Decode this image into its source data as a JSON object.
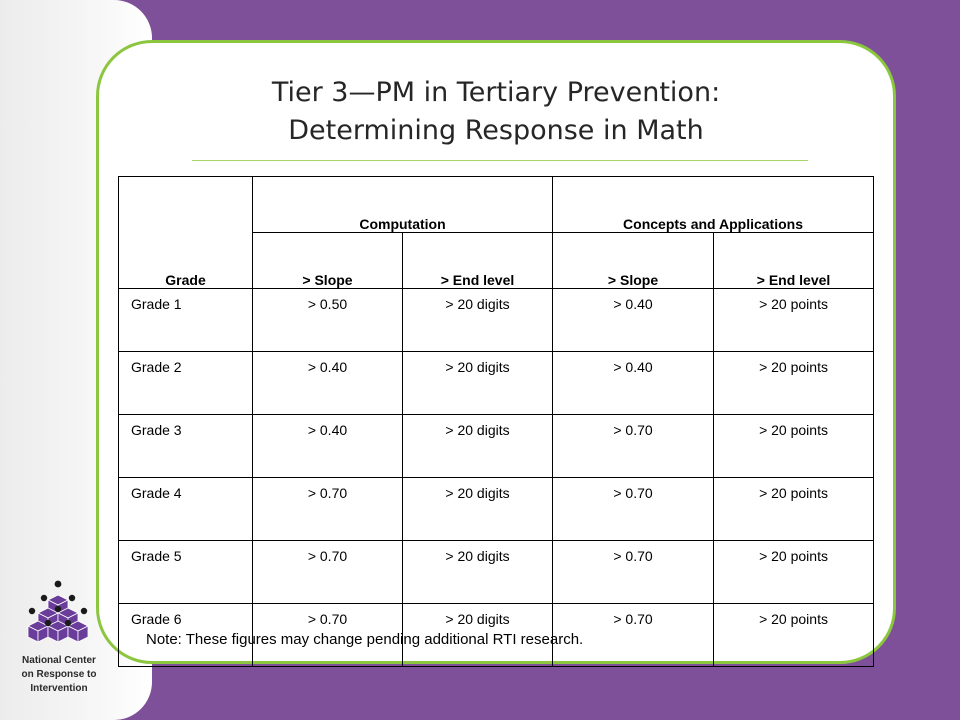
{
  "slide": {
    "title_line1": "Tier 3—PM in Tertiary Prevention:",
    "title_line2": "Determining Response in Math"
  },
  "sidebar": {
    "org_line1": "National Center",
    "org_line2": "on Response to",
    "org_line3": "Intervention",
    "logo_icon": "stacked-cubes-logo-icon"
  },
  "colors": {
    "background": "#7d5099",
    "card_border": "#8cc63f",
    "logo_cube": "#6a3d9a"
  },
  "table": {
    "grade_header": "Grade",
    "group_computation": "Computation",
    "group_concepts": "Concepts and Applications",
    "sub_headers": [
      "> Slope",
      "> End level",
      "> Slope",
      "> End level"
    ],
    "rows": [
      [
        "Grade 1",
        "> 0.50",
        "> 20 digits",
        "> 0.40",
        "> 20 points"
      ],
      [
        "Grade 2",
        "> 0.40",
        "> 20 digits",
        "> 0.40",
        "> 20 points"
      ],
      [
        "Grade 3",
        "> 0.40",
        "> 20 digits",
        "> 0.70",
        "> 20 points"
      ],
      [
        "Grade 4",
        "> 0.70",
        "> 20 digits",
        "> 0.70",
        "> 20 points"
      ],
      [
        "Grade 5",
        "> 0.70",
        "> 20 digits",
        "> 0.70",
        "> 20 points"
      ],
      [
        "Grade 6",
        "> 0.70",
        "> 20 digits",
        "> 0.70",
        "> 20 points"
      ]
    ]
  },
  "note": "Note: These figures may change pending additional RTI research."
}
